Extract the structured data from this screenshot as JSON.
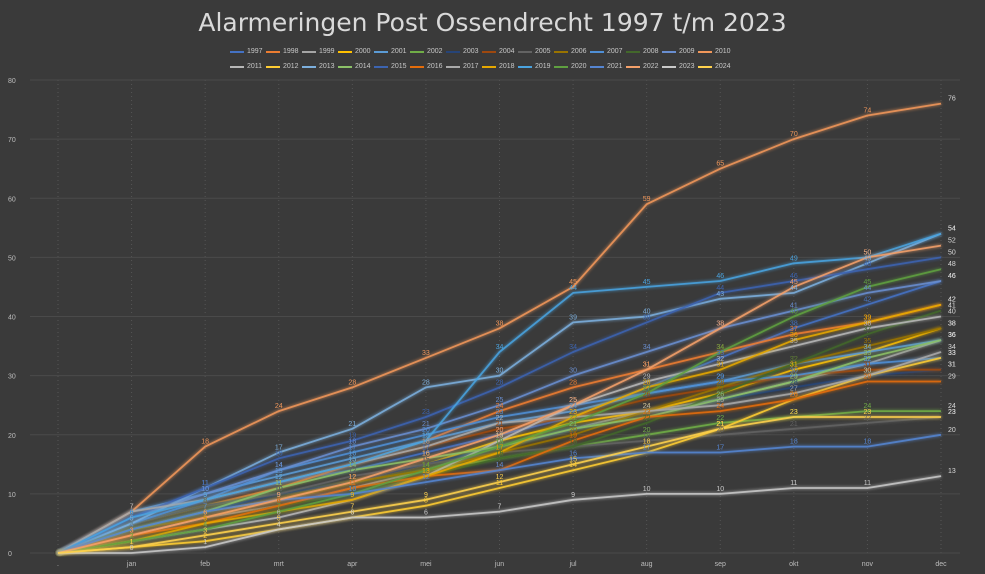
{
  "chart_data": {
    "type": "line",
    "title": "Alarmeringen Post Ossendrecht 1997 t/m 2023",
    "categories": [
      ".",
      "jan",
      "feb",
      "mrt",
      "apr",
      "mei",
      "jun",
      "jul",
      "aug",
      "sep",
      "okt",
      "nov",
      "dec"
    ],
    "ylim": [
      0,
      80
    ],
    "yticks": [
      0,
      10,
      20,
      30,
      40,
      50,
      60,
      70,
      80
    ],
    "grid": true,
    "legend_position": "top",
    "series": [
      {
        "name": "1997",
        "color": "#4472c4",
        "values": [
          0,
          6,
          9,
          12,
          14,
          17,
          20,
          23,
          28,
          33,
          38,
          42,
          46
        ]
      },
      {
        "name": "1998",
        "color": "#ed7d31",
        "values": [
          0,
          5,
          8,
          11,
          15,
          19,
          24,
          28,
          31,
          34,
          37,
          39,
          42
        ]
      },
      {
        "name": "1999",
        "color": "#a5a5a5",
        "values": [
          0,
          3,
          6,
          8,
          11,
          14,
          18,
          21,
          24,
          26,
          29,
          32,
          36
        ]
      },
      {
        "name": "2000",
        "color": "#ffc000",
        "values": [
          0,
          4,
          7,
          9,
          12,
          15,
          19,
          22,
          24,
          27,
          31,
          34,
          38
        ]
      },
      {
        "name": "2001",
        "color": "#5b9bd5",
        "values": [
          0,
          7,
          10,
          13,
          16,
          19,
          22,
          24,
          27,
          29,
          32,
          34,
          36
        ]
      },
      {
        "name": "2002",
        "color": "#70ad47",
        "values": [
          0,
          5,
          8,
          10,
          12,
          14,
          16,
          18,
          20,
          22,
          23,
          24,
          24
        ]
      },
      {
        "name": "2003",
        "color": "#264478",
        "values": [
          0,
          4,
          7,
          10,
          12,
          15,
          18,
          21,
          23,
          26,
          28,
          30,
          31
        ]
      },
      {
        "name": "2004",
        "color": "#9e480e",
        "values": [
          0,
          6,
          9,
          12,
          15,
          18,
          21,
          23,
          26,
          28,
          30,
          31,
          31
        ]
      },
      {
        "name": "2005",
        "color": "#636363",
        "values": [
          0,
          5,
          8,
          10,
          13,
          15,
          17,
          18,
          19,
          20,
          21,
          22,
          23
        ]
      },
      {
        "name": "2006",
        "color": "#997300",
        "values": [
          0,
          4,
          6,
          9,
          12,
          14,
          17,
          20,
          24,
          28,
          32,
          35,
          38
        ]
      },
      {
        "name": "2007",
        "color": "#4f8fd6",
        "values": [
          0,
          5,
          9,
          14,
          17,
          20,
          23,
          25,
          27,
          29,
          30,
          32,
          33
        ]
      },
      {
        "name": "2008",
        "color": "#43682b",
        "values": [
          0,
          3,
          5,
          8,
          10,
          13,
          16,
          18,
          22,
          27,
          32,
          37,
          41
        ]
      },
      {
        "name": "2009",
        "color": "#698ed0",
        "values": [
          0,
          6,
          10,
          14,
          18,
          21,
          25,
          30,
          34,
          38,
          41,
          44,
          46
        ]
      },
      {
        "name": "2010",
        "color": "#f1975a",
        "values": [
          0,
          7,
          18,
          24,
          28,
          33,
          38,
          45,
          59,
          65,
          70,
          74,
          76
        ]
      },
      {
        "name": "2011",
        "color": "#b7b7b7",
        "values": [
          0,
          2,
          4,
          6,
          9,
          13,
          19,
          25,
          29,
          32,
          35,
          38,
          40
        ]
      },
      {
        "name": "2012",
        "color": "#ffcd33",
        "values": [
          0,
          1,
          2,
          4,
          6,
          8,
          11,
          14,
          17,
          21,
          26,
          30,
          33
        ]
      },
      {
        "name": "2013",
        "color": "#7cafdd",
        "values": [
          0,
          5,
          11,
          17,
          21,
          28,
          30,
          39,
          40,
          43,
          44,
          49,
          54
        ]
      },
      {
        "name": "2014",
        "color": "#8cc168",
        "values": [
          0,
          4,
          7,
          11,
          14,
          16,
          18,
          21,
          23,
          26,
          29,
          33,
          36
        ]
      },
      {
        "name": "2015",
        "color": "#3c64b1",
        "values": [
          0,
          6,
          11,
          16,
          19,
          23,
          28,
          34,
          39,
          44,
          46,
          48,
          50
        ]
      },
      {
        "name": "2016",
        "color": "#e46c0a",
        "values": [
          0,
          3,
          5,
          8,
          11,
          13,
          14,
          19,
          23,
          24,
          26,
          29,
          29
        ]
      },
      {
        "name": "2017",
        "color": "#a9a9a9",
        "values": [
          0,
          7,
          9,
          12,
          15,
          18,
          22,
          23,
          24,
          25,
          27,
          30,
          34
        ]
      },
      {
        "name": "2018",
        "color": "#e6a800",
        "values": [
          0,
          2,
          5,
          7,
          9,
          13,
          17,
          23,
          28,
          31,
          36,
          39,
          42
        ]
      },
      {
        "name": "2019",
        "color": "#4aa3df",
        "values": [
          0,
          6,
          9,
          12,
          15,
          19,
          34,
          44,
          45,
          46,
          49,
          50,
          54
        ]
      },
      {
        "name": "2020",
        "color": "#5fa040",
        "values": [
          0,
          2,
          4,
          7,
          10,
          14,
          18,
          22,
          27,
          34,
          40,
          45,
          48
        ]
      },
      {
        "name": "2021",
        "color": "#5585d1",
        "values": [
          0,
          4,
          7,
          9,
          10,
          12,
          14,
          16,
          17,
          17,
          18,
          18,
          20
        ]
      },
      {
        "name": "2022",
        "color": "#f4a06a",
        "values": [
          0,
          3,
          6,
          9,
          12,
          16,
          20,
          25,
          31,
          38,
          45,
          50,
          52
        ]
      },
      {
        "name": "2023",
        "color": "#c9c9c9",
        "values": [
          0,
          0,
          1,
          4,
          6,
          6,
          7,
          9,
          10,
          10,
          11,
          11,
          13
        ]
      },
      {
        "name": "2024",
        "color": "#ffd24d",
        "values": [
          0,
          1,
          3,
          5,
          7,
          9,
          12,
          15,
          18,
          21,
          23,
          23,
          23
        ]
      }
    ]
  }
}
